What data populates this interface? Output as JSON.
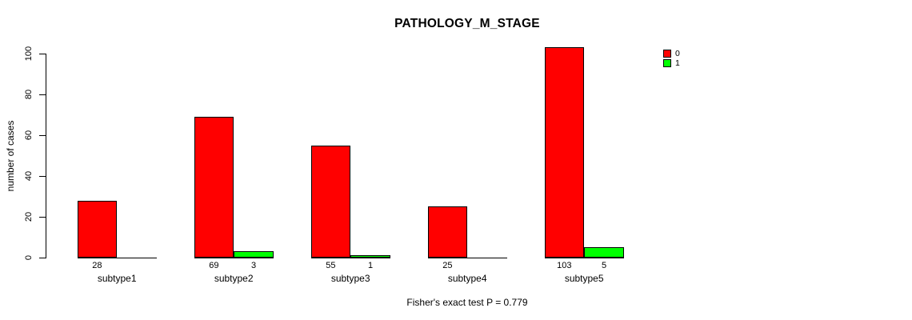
{
  "chart_data": {
    "type": "bar",
    "title": "PATHOLOGY_M_STAGE",
    "ylabel": "number of cases",
    "xlabel": "",
    "annotation": "Fisher's exact test P = 0.779",
    "categories": [
      "subtype1",
      "subtype2",
      "subtype3",
      "subtype4",
      "subtype5"
    ],
    "series": [
      {
        "name": "0",
        "color": "#ff0000",
        "values": [
          28,
          69,
          55,
          25,
          103
        ]
      },
      {
        "name": "1",
        "color": "#00ff00",
        "values": [
          0,
          3,
          1,
          0,
          5
        ]
      }
    ],
    "ylim": [
      0,
      100
    ],
    "yticks": [
      0,
      20,
      40,
      60,
      80,
      100
    ],
    "grid": false,
    "legend_position": "top-right",
    "value_labels_hide_zero": true,
    "bar_border_color": "#000000",
    "axis_color": "#000000"
  }
}
